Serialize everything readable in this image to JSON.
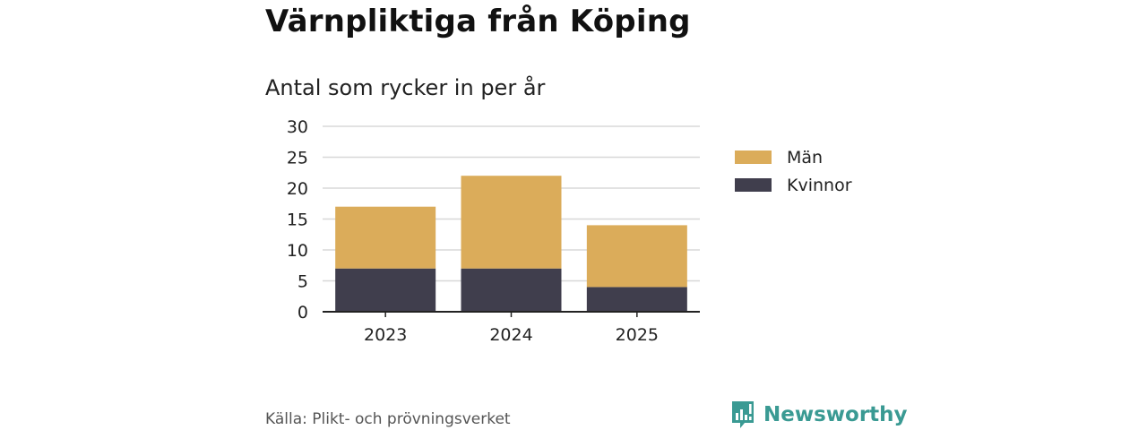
{
  "chart_data": {
    "type": "bar",
    "stacked": true,
    "title": "Värnpliktiga från Köping",
    "subtitle": "Antal som rycker in per år",
    "categories": [
      "2023",
      "2024",
      "2025"
    ],
    "series": [
      {
        "name": "Kvinnor",
        "values": [
          7,
          7,
          4
        ],
        "color": "#403e4d"
      },
      {
        "name": "Män",
        "values": [
          10,
          15,
          10
        ],
        "color": "#dbac5a"
      }
    ],
    "yticks": [
      "0",
      "5",
      "10",
      "15",
      "20",
      "25",
      "30"
    ],
    "ylim": [
      0,
      30
    ],
    "grid": true,
    "legend": [
      {
        "name": "Män",
        "color": "#dbac5a"
      },
      {
        "name": "Kvinnor",
        "color": "#403e4d"
      }
    ],
    "legend_position": "right"
  },
  "footer": {
    "source": "Källa: Plikt- och prövningsverket",
    "brand": "Newsworthy",
    "brand_color": "#3a9a93"
  }
}
